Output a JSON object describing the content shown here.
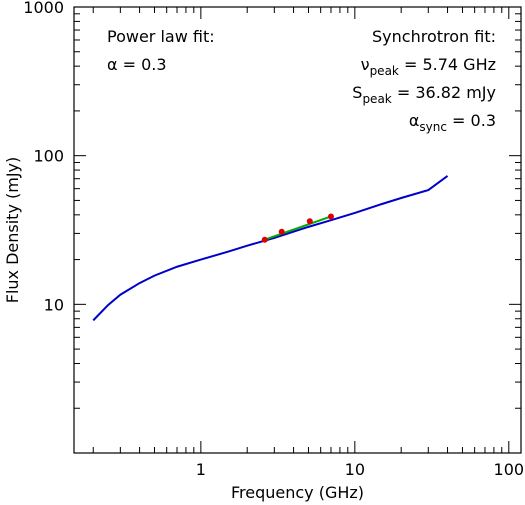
{
  "chart_data": {
    "type": "line",
    "xlabel": "Frequency (GHz)",
    "ylabel": "Flux Density (mJy)",
    "xscale": "log",
    "yscale": "log",
    "xlim": [
      0.15,
      120
    ],
    "ylim": [
      1,
      1000
    ],
    "x_tick_labels": [
      "1",
      "10",
      "100"
    ],
    "y_tick_labels": [
      "10",
      "100",
      "1000"
    ],
    "grid": false,
    "annotations": {
      "power_law": {
        "title": "Power law fit:",
        "alpha_symbol": "α",
        "alpha_text": " = 0.3"
      },
      "synchrotron": {
        "title": "Synchrotron fit:",
        "nu_symbol": "ν",
        "nu_sub": "peak",
        "nu_text": " = 5.74 GHz",
        "s_symbol": "S",
        "s_sub": "peak",
        "s_text": " = 36.82 mJy",
        "alpha_symbol": "α",
        "alpha_sub": "sync",
        "alpha_text": " = 0.3"
      }
    },
    "series": [
      {
        "kind": "line",
        "color": "#0000cc",
        "x": [
          0.2,
          0.25,
          0.3,
          0.4,
          0.5,
          0.7,
          1.0,
          1.5,
          2.0,
          3.0,
          5.0,
          7.0,
          10,
          15,
          20,
          30,
          40
        ],
        "y": [
          7.8,
          9.9,
          11.6,
          13.9,
          15.6,
          17.9,
          20.0,
          22.6,
          24.8,
          28.0,
          33.2,
          36.8,
          41.2,
          47.3,
          51.9,
          58.7,
          73.0
        ]
      },
      {
        "kind": "line",
        "color": "#00aa00",
        "x": [
          2.6,
          7.0
        ],
        "y": [
          27.2,
          39.0
        ]
      },
      {
        "kind": "scatter",
        "color": "#dd0000",
        "x": [
          2.6,
          3.35,
          5.1,
          7.0
        ],
        "y": [
          27.2,
          30.8,
          36.2,
          39.0
        ]
      }
    ]
  }
}
